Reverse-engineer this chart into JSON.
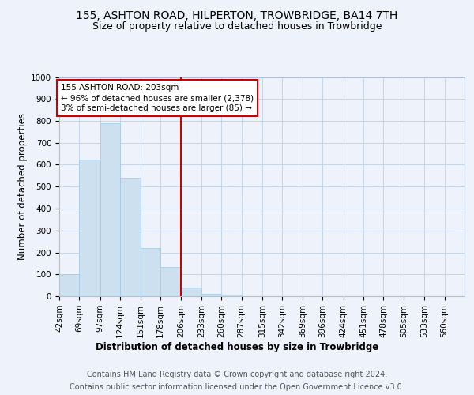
{
  "title_line1": "155, ASHTON ROAD, HILPERTON, TROWBRIDGE, BA14 7TH",
  "title_line2": "Size of property relative to detached houses in Trowbridge",
  "xlabel": "Distribution of detached houses by size in Trowbridge",
  "ylabel": "Number of detached properties",
  "footer_line1": "Contains HM Land Registry data © Crown copyright and database right 2024.",
  "footer_line2": "Contains public sector information licensed under the Open Government Licence v3.0.",
  "bar_edges": [
    42,
    69,
    97,
    124,
    151,
    178,
    206,
    233,
    260,
    287,
    315,
    342,
    369,
    396,
    424,
    451,
    478,
    505,
    533,
    560,
    587
  ],
  "bar_heights": [
    100,
    625,
    790,
    540,
    220,
    135,
    40,
    10,
    7,
    0,
    0,
    0,
    0,
    0,
    0,
    0,
    0,
    0,
    0,
    0
  ],
  "bar_color": "#cce0f0",
  "bar_edge_color": "#a0c8e8",
  "vline_x": 206,
  "vline_color": "#cc0000",
  "annotation_text_line1": "155 ASHTON ROAD: 203sqm",
  "annotation_text_line2": "← 96% of detached houses are smaller (2,378)",
  "annotation_text_line3": "3% of semi-detached houses are larger (85) →",
  "ylim": [
    0,
    1000
  ],
  "yticks": [
    0,
    100,
    200,
    300,
    400,
    500,
    600,
    700,
    800,
    900,
    1000
  ],
  "bg_color": "#eef2fa",
  "plot_bg_color": "#eef2fa",
  "grid_color": "#c0d0e8",
  "title_fontsize": 10,
  "subtitle_fontsize": 9,
  "axis_label_fontsize": 8.5,
  "tick_fontsize": 7.5,
  "footer_fontsize": 7,
  "annot_fontsize": 7.5
}
